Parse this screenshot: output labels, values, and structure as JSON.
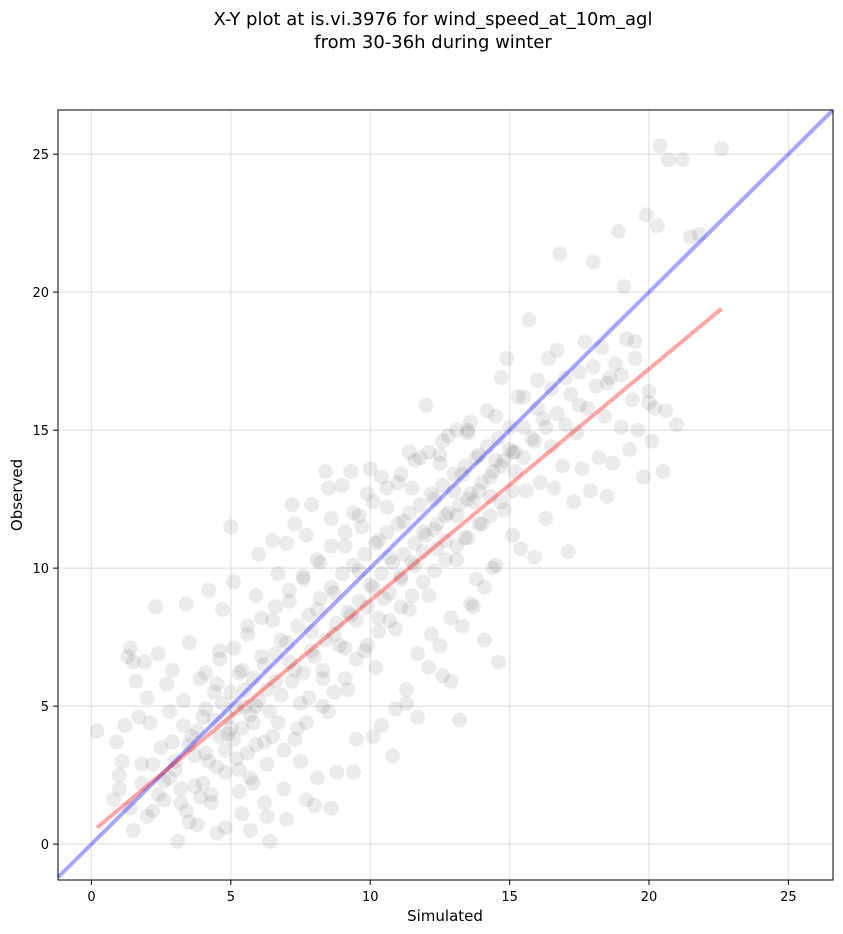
{
  "chart_data": {
    "type": "scatter",
    "title_line1": "X-Y plot at is.vi.3976 for wind_speed_at_10m_agl",
    "title_line2": "from 30-36h during winter",
    "xlabel": "Simulated",
    "ylabel": "Observed",
    "xlim": [
      -1.2,
      26.6
    ],
    "ylim": [
      -1.3,
      26.6
    ],
    "xticks": [
      0,
      5,
      10,
      15,
      20,
      25
    ],
    "yticks": [
      0,
      5,
      10,
      15,
      20,
      25
    ],
    "grid": true,
    "point_color": "#000000",
    "point_opacity": 0.08,
    "identity_line": {
      "color": "#0000ff",
      "opacity": 0.35,
      "from": [
        -1.2,
        -1.2
      ],
      "to": [
        26.6,
        26.6
      ]
    },
    "fit_line": {
      "color": "#ff0000",
      "opacity": 0.35,
      "from": [
        0.2,
        0.6
      ],
      "to": [
        22.6,
        19.4
      ]
    },
    "points": [
      [
        0.2,
        4.1
      ],
      [
        0.8,
        1.6
      ],
      [
        0.9,
        3.7
      ],
      [
        1.0,
        2.5
      ],
      [
        1.1,
        3.0
      ],
      [
        1.2,
        4.3
      ],
      [
        1.3,
        6.8
      ],
      [
        1.4,
        7.1
      ],
      [
        1.5,
        6.6
      ],
      [
        1.6,
        5.9
      ],
      [
        1.7,
        4.6
      ],
      [
        1.8,
        2.9
      ],
      [
        1.5,
        0.5
      ],
      [
        1.9,
        6.6
      ],
      [
        2.0,
        5.3
      ],
      [
        2.1,
        4.4
      ],
      [
        2.3,
        8.6
      ],
      [
        2.4,
        6.9
      ],
      [
        2.2,
        1.2
      ],
      [
        2.5,
        3.5
      ],
      [
        2.6,
        2.3
      ],
      [
        2.7,
        5.8
      ],
      [
        2.8,
        4.8
      ],
      [
        2.9,
        6.3
      ],
      [
        3.0,
        2.7
      ],
      [
        3.1,
        0.1
      ],
      [
        3.2,
        1.5
      ],
      [
        3.3,
        5.2
      ],
      [
        3.4,
        8.7
      ],
      [
        3.5,
        7.3
      ],
      [
        3.6,
        3.9
      ],
      [
        3.7,
        2.1
      ],
      [
        3.8,
        0.7
      ],
      [
        3.9,
        6.0
      ],
      [
        4.0,
        4.6
      ],
      [
        4.1,
        3.3
      ],
      [
        4.2,
        9.2
      ],
      [
        4.3,
        1.8
      ],
      [
        4.4,
        5.5
      ],
      [
        4.5,
        0.4
      ],
      [
        4.6,
        7.0
      ],
      [
        4.7,
        8.5
      ],
      [
        4.8,
        2.6
      ],
      [
        4.9,
        4.0
      ],
      [
        5.0,
        11.5
      ],
      [
        5.1,
        9.5
      ],
      [
        5.2,
        3.1
      ],
      [
        5.3,
        6.2
      ],
      [
        5.4,
        1.1
      ],
      [
        5.5,
        5.0
      ],
      [
        5.6,
        7.9
      ],
      [
        5.7,
        2.4
      ],
      [
        5.8,
        4.4
      ],
      [
        5.9,
        9.0
      ],
      [
        6.0,
        10.5
      ],
      [
        6.1,
        6.8
      ],
      [
        6.2,
        3.7
      ],
      [
        6.3,
        1.0
      ],
      [
        6.4,
        0.1
      ],
      [
        6.5,
        8.1
      ],
      [
        6.6,
        5.9
      ],
      [
        6.7,
        9.8
      ],
      [
        6.8,
        7.4
      ],
      [
        6.9,
        2.0
      ],
      [
        7.0,
        10.9
      ],
      [
        7.1,
        8.8
      ],
      [
        7.2,
        12.3
      ],
      [
        7.3,
        6.3
      ],
      [
        7.4,
        4.2
      ],
      [
        7.5,
        3.0
      ],
      [
        7.6,
        9.6
      ],
      [
        7.7,
        11.2
      ],
      [
        7.8,
        5.3
      ],
      [
        7.9,
        7.7
      ],
      [
        8.0,
        1.4
      ],
      [
        8.1,
        8.5
      ],
      [
        8.2,
        10.2
      ],
      [
        8.3,
        6.0
      ],
      [
        8.4,
        13.5
      ],
      [
        8.5,
        4.8
      ],
      [
        8.6,
        11.8
      ],
      [
        8.7,
        9.1
      ],
      [
        8.8,
        2.6
      ],
      [
        8.9,
        7.2
      ],
      [
        9.0,
        13.0
      ],
      [
        9.1,
        10.8
      ],
      [
        9.2,
        5.6
      ],
      [
        9.3,
        8.3
      ],
      [
        9.4,
        12.0
      ],
      [
        9.5,
        3.8
      ],
      [
        9.6,
        9.9
      ],
      [
        9.7,
        11.5
      ],
      [
        9.8,
        7.0
      ],
      [
        9.9,
        12.7
      ],
      [
        10.0,
        13.6
      ],
      [
        10.1,
        9.3
      ],
      [
        10.2,
        6.4
      ],
      [
        10.3,
        11.0
      ],
      [
        10.4,
        4.3
      ],
      [
        10.5,
        8.9
      ],
      [
        10.6,
        12.2
      ],
      [
        10.7,
        10.4
      ],
      [
        10.8,
        3.2
      ],
      [
        10.9,
        7.8
      ],
      [
        11.0,
        13.1
      ],
      [
        11.1,
        9.7
      ],
      [
        11.2,
        11.7
      ],
      [
        11.3,
        5.1
      ],
      [
        11.4,
        8.5
      ],
      [
        11.5,
        12.9
      ],
      [
        11.6,
        10.1
      ],
      [
        11.7,
        6.9
      ],
      [
        11.8,
        14.0
      ],
      [
        11.9,
        11.3
      ],
      [
        12.0,
        15.9
      ],
      [
        12.1,
        9.0
      ],
      [
        12.2,
        7.6
      ],
      [
        12.3,
        12.5
      ],
      [
        12.4,
        10.7
      ],
      [
        12.5,
        13.8
      ],
      [
        12.6,
        6.1
      ],
      [
        12.7,
        11.9
      ],
      [
        12.8,
        14.8
      ],
      [
        12.9,
        8.2
      ],
      [
        13.0,
        12.8
      ],
      [
        13.1,
        10.3
      ],
      [
        13.2,
        4.5
      ],
      [
        13.3,
        13.4
      ],
      [
        13.4,
        11.1
      ],
      [
        13.5,
        15.0
      ],
      [
        13.6,
        8.7
      ],
      [
        13.7,
        12.4
      ],
      [
        13.8,
        9.6
      ],
      [
        13.9,
        14.1
      ],
      [
        14.0,
        11.6
      ],
      [
        14.1,
        7.4
      ],
      [
        14.2,
        15.7
      ],
      [
        14.3,
        12.6
      ],
      [
        14.4,
        10.0
      ],
      [
        14.5,
        13.9
      ],
      [
        14.6,
        6.6
      ],
      [
        14.7,
        16.9
      ],
      [
        14.8,
        12.1
      ],
      [
        14.9,
        17.6
      ],
      [
        15.0,
        14.3
      ],
      [
        15.1,
        11.2
      ],
      [
        15.2,
        13.5
      ],
      [
        15.3,
        16.2
      ],
      [
        15.4,
        10.7
      ],
      [
        15.5,
        15.1
      ],
      [
        15.6,
        12.8
      ],
      [
        15.7,
        19.0
      ],
      [
        15.8,
        14.7
      ],
      [
        15.9,
        10.4
      ],
      [
        16.0,
        16.8
      ],
      [
        16.1,
        13.1
      ],
      [
        16.2,
        15.4
      ],
      [
        16.3,
        11.8
      ],
      [
        16.4,
        17.6
      ],
      [
        16.5,
        14.4
      ],
      [
        16.6,
        12.9
      ],
      [
        16.7,
        17.9
      ],
      [
        16.8,
        21.4
      ],
      [
        16.9,
        13.7
      ],
      [
        17.0,
        15.2
      ],
      [
        17.1,
        10.6
      ],
      [
        17.2,
        16.3
      ],
      [
        17.3,
        12.4
      ],
      [
        17.4,
        14.9
      ],
      [
        17.5,
        17.1
      ],
      [
        17.6,
        13.6
      ],
      [
        17.7,
        18.2
      ],
      [
        17.8,
        15.8
      ],
      [
        17.9,
        12.8
      ],
      [
        18.0,
        21.1
      ],
      [
        18.1,
        16.6
      ],
      [
        18.2,
        14.0
      ],
      [
        18.3,
        18.0
      ],
      [
        18.4,
        15.5
      ],
      [
        18.5,
        12.6
      ],
      [
        18.6,
        16.9
      ],
      [
        18.7,
        13.8
      ],
      [
        18.8,
        17.4
      ],
      [
        18.9,
        22.2
      ],
      [
        19.0,
        15.1
      ],
      [
        19.1,
        20.2
      ],
      [
        19.2,
        18.3
      ],
      [
        19.3,
        14.3
      ],
      [
        19.4,
        16.1
      ],
      [
        19.5,
        17.6
      ],
      [
        19.6,
        15.0
      ],
      [
        19.8,
        13.3
      ],
      [
        19.9,
        22.8
      ],
      [
        20.0,
        16.4
      ],
      [
        20.1,
        14.6
      ],
      [
        20.2,
        15.8
      ],
      [
        20.3,
        22.4
      ],
      [
        20.4,
        25.3
      ],
      [
        20.5,
        13.5
      ],
      [
        20.6,
        15.7
      ],
      [
        20.7,
        24.8
      ],
      [
        21.0,
        15.2
      ],
      [
        21.2,
        24.8
      ],
      [
        21.5,
        22.0
      ],
      [
        21.8,
        22.1
      ],
      [
        22.6,
        25.2
      ],
      [
        3.0,
        3.0
      ],
      [
        3.2,
        2.0
      ],
      [
        3.5,
        3.6
      ],
      [
        3.8,
        4.1
      ],
      [
        4.0,
        2.2
      ],
      [
        4.2,
        3.0
      ],
      [
        4.4,
        4.5
      ],
      [
        4.5,
        2.8
      ],
      [
        4.6,
        3.9
      ],
      [
        4.7,
        5.1
      ],
      [
        4.8,
        3.4
      ],
      [
        4.9,
        4.6
      ],
      [
        5.0,
        5.5
      ],
      [
        5.1,
        3.8
      ],
      [
        5.2,
        4.9
      ],
      [
        5.3,
        2.7
      ],
      [
        5.4,
        4.2
      ],
      [
        5.5,
        5.6
      ],
      [
        5.6,
        3.3
      ],
      [
        5.7,
        4.7
      ],
      [
        5.8,
        6.0
      ],
      [
        5.9,
        3.6
      ],
      [
        6.0,
        5.2
      ],
      [
        6.2,
        6.5
      ],
      [
        6.4,
        4.8
      ],
      [
        6.5,
        3.9
      ],
      [
        6.6,
        6.9
      ],
      [
        6.8,
        5.4
      ],
      [
        7.0,
        7.3
      ],
      [
        7.2,
        5.9
      ],
      [
        7.4,
        7.9
      ],
      [
        7.6,
        6.2
      ],
      [
        7.8,
        8.3
      ],
      [
        8.0,
        6.8
      ],
      [
        8.2,
        8.9
      ],
      [
        8.4,
        7.4
      ],
      [
        8.6,
        9.3
      ],
      [
        8.8,
        8.0
      ],
      [
        9.0,
        9.8
      ],
      [
        9.2,
        8.4
      ],
      [
        9.4,
        10.1
      ],
      [
        9.6,
        8.8
      ],
      [
        9.8,
        10.5
      ],
      [
        10.0,
        9.4
      ],
      [
        10.2,
        10.9
      ],
      [
        10.4,
        9.8
      ],
      [
        10.6,
        11.3
      ],
      [
        10.8,
        10.2
      ],
      [
        11.0,
        11.6
      ],
      [
        11.2,
        10.5
      ],
      [
        11.4,
        12.0
      ],
      [
        11.6,
        10.9
      ],
      [
        11.8,
        12.3
      ],
      [
        12.0,
        11.2
      ],
      [
        12.2,
        12.7
      ],
      [
        12.4,
        11.6
      ],
      [
        12.6,
        13.0
      ],
      [
        12.8,
        12.0
      ],
      [
        13.0,
        13.4
      ],
      [
        13.2,
        12.3
      ],
      [
        13.4,
        13.7
      ],
      [
        13.6,
        12.7
      ],
      [
        13.8,
        14.0
      ],
      [
        14.0,
        13.1
      ],
      [
        14.2,
        14.4
      ],
      [
        14.4,
        13.5
      ],
      [
        14.6,
        14.7
      ],
      [
        14.8,
        13.9
      ],
      [
        15.0,
        15.1
      ],
      [
        15.2,
        14.2
      ],
      [
        2.0,
        1.0
      ],
      [
        2.4,
        1.8
      ],
      [
        2.8,
        2.4
      ],
      [
        3.4,
        1.2
      ],
      [
        3.9,
        1.7
      ],
      [
        4.3,
        1.5
      ],
      [
        5.3,
        1.9
      ],
      [
        5.8,
        2.2
      ],
      [
        6.3,
        2.9
      ],
      [
        6.9,
        3.4
      ],
      [
        7.3,
        3.8
      ],
      [
        7.7,
        4.4
      ],
      [
        8.3,
        5.0
      ],
      [
        8.7,
        5.5
      ],
      [
        9.1,
        6.0
      ],
      [
        9.5,
        6.7
      ],
      [
        9.9,
        7.2
      ],
      [
        10.3,
        7.7
      ],
      [
        10.7,
        8.1
      ],
      [
        11.1,
        8.6
      ],
      [
        11.5,
        9.0
      ],
      [
        11.9,
        9.5
      ],
      [
        12.3,
        9.9
      ],
      [
        12.7,
        10.3
      ],
      [
        13.1,
        10.8
      ],
      [
        13.5,
        11.1
      ],
      [
        13.9,
        11.6
      ],
      [
        14.3,
        11.9
      ],
      [
        14.7,
        12.4
      ],
      [
        15.1,
        12.8
      ],
      [
        4.1,
        6.2
      ],
      [
        4.6,
        6.7
      ],
      [
        5.1,
        7.1
      ],
      [
        5.6,
        7.6
      ],
      [
        6.1,
        8.2
      ],
      [
        6.6,
        8.6
      ],
      [
        7.1,
        9.2
      ],
      [
        7.6,
        9.7
      ],
      [
        8.1,
        10.3
      ],
      [
        8.6,
        10.8
      ],
      [
        9.1,
        11.3
      ],
      [
        9.6,
        11.9
      ],
      [
        10.1,
        12.4
      ],
      [
        10.6,
        12.9
      ],
      [
        11.1,
        13.4
      ],
      [
        11.6,
        13.9
      ],
      [
        12.1,
        14.2
      ],
      [
        12.6,
        14.6
      ],
      [
        13.1,
        15.0
      ],
      [
        13.6,
        15.3
      ],
      [
        1.0,
        2.0
      ],
      [
        1.4,
        1.3
      ],
      [
        1.8,
        2.2
      ],
      [
        2.2,
        2.9
      ],
      [
        2.6,
        1.6
      ],
      [
        2.9,
        3.7
      ],
      [
        3.3,
        4.3
      ],
      [
        3.7,
        3.2
      ],
      [
        4.1,
        4.9
      ],
      [
        4.5,
        5.8
      ],
      [
        5.0,
        4.2
      ],
      [
        5.4,
        6.3
      ],
      [
        5.9,
        5.0
      ],
      [
        6.3,
        5.6
      ],
      [
        6.7,
        4.4
      ],
      [
        7.1,
        6.6
      ],
      [
        7.5,
        5.1
      ],
      [
        7.9,
        7.0
      ],
      [
        8.3,
        6.3
      ],
      [
        8.7,
        7.6
      ],
      [
        9.1,
        7.1
      ],
      [
        9.5,
        8.1
      ],
      [
        9.9,
        8.6
      ],
      [
        10.3,
        8.2
      ],
      [
        10.7,
        9.1
      ],
      [
        11.1,
        9.6
      ],
      [
        11.5,
        10.2
      ],
      [
        11.9,
        10.6
      ],
      [
        12.3,
        11.4
      ],
      [
        12.7,
        11.0
      ],
      [
        13.1,
        11.9
      ],
      [
        13.5,
        12.5
      ],
      [
        13.9,
        12.8
      ],
      [
        14.3,
        13.3
      ],
      [
        14.7,
        13.7
      ],
      [
        15.1,
        14.2
      ],
      [
        15.5,
        14.0
      ],
      [
        15.9,
        14.6
      ],
      [
        16.3,
        15.1
      ],
      [
        16.7,
        15.6
      ],
      [
        3.5,
        0.8
      ],
      [
        4.8,
        0.6
      ],
      [
        5.7,
        0.5
      ],
      [
        6.2,
        1.5
      ],
      [
        7.0,
        0.9
      ],
      [
        7.7,
        1.6
      ],
      [
        8.1,
        2.4
      ],
      [
        8.6,
        1.3
      ],
      [
        9.4,
        2.6
      ],
      [
        10.1,
        3.9
      ],
      [
        10.9,
        4.9
      ],
      [
        11.3,
        5.6
      ],
      [
        11.7,
        4.6
      ],
      [
        12.1,
        6.4
      ],
      [
        12.5,
        7.2
      ],
      [
        12.9,
        5.9
      ],
      [
        13.3,
        7.9
      ],
      [
        13.7,
        8.6
      ],
      [
        14.1,
        9.3
      ],
      [
        14.5,
        10.1
      ],
      [
        6.5,
        11.0
      ],
      [
        7.3,
        11.6
      ],
      [
        7.9,
        12.3
      ],
      [
        8.5,
        12.9
      ],
      [
        9.3,
        13.5
      ],
      [
        10.4,
        13.3
      ],
      [
        11.4,
        14.2
      ],
      [
        12.5,
        14.1
      ],
      [
        13.5,
        14.9
      ],
      [
        14.5,
        15.5
      ],
      [
        15.5,
        16.2
      ],
      [
        16.0,
        15.8
      ],
      [
        16.5,
        16.5
      ],
      [
        17.0,
        16.9
      ],
      [
        17.5,
        15.9
      ],
      [
        18.0,
        17.3
      ],
      [
        18.5,
        16.7
      ],
      [
        19.0,
        17.0
      ],
      [
        19.5,
        18.2
      ],
      [
        20.0,
        16.0
      ]
    ]
  }
}
